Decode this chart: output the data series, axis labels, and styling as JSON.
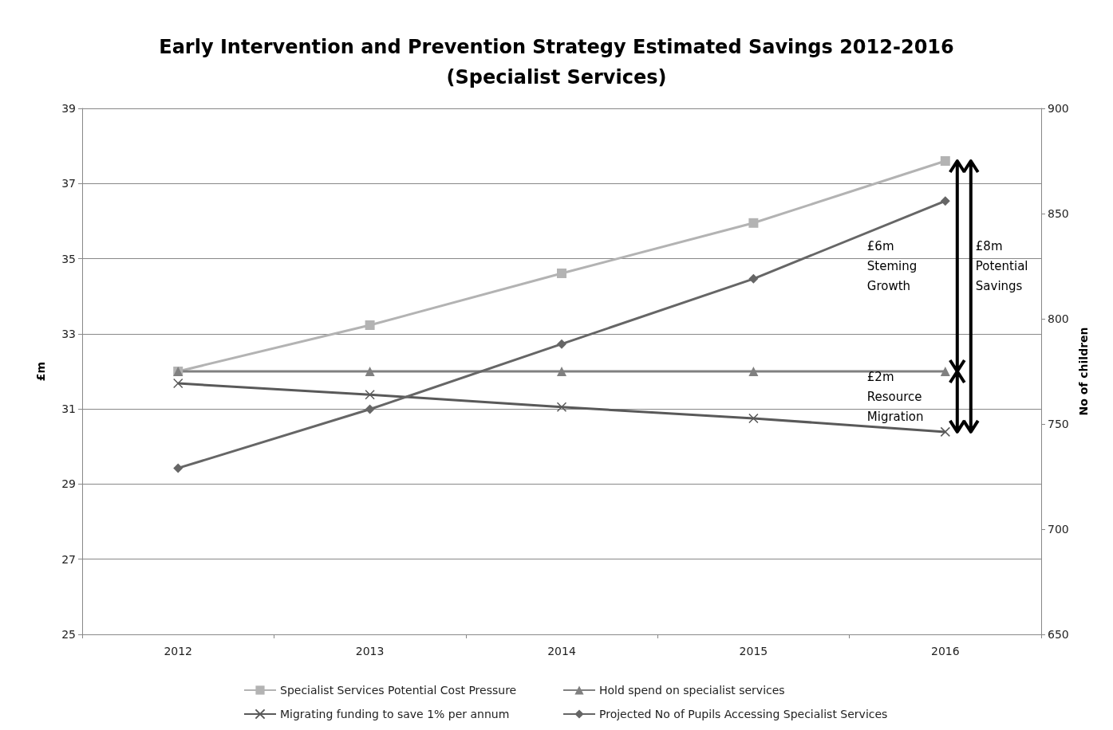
{
  "chart_data": {
    "type": "line",
    "title": "Early Intervention and Prevention Strategy Estimated Savings 2012-2016\n(Specialist Services)",
    "categories": [
      "2012",
      "2013",
      "2014",
      "2015",
      "2016"
    ],
    "ylabel": "£m",
    "y2label": "No of children",
    "ylim": [
      25,
      39
    ],
    "yticks": [
      25,
      27,
      29,
      31,
      33,
      35,
      37,
      39
    ],
    "y2lim": [
      650,
      900
    ],
    "y2ticks": [
      650,
      700,
      750,
      800,
      850,
      900
    ],
    "grid": "y",
    "legend": "bottom",
    "series": [
      {
        "name": "Specialist Services Potential Cost Pressure",
        "color": "#b3b3b3",
        "marker": "square",
        "values": [
          32.0,
          33.23,
          34.61,
          35.95,
          37.6
        ]
      },
      {
        "name": "Hold spend on specialist services",
        "color": "#808080",
        "marker": "triangle",
        "values": [
          32.0,
          32.0,
          32.0,
          32.0,
          32.0
        ]
      },
      {
        "name": "Migrating funding to save 1% per annum",
        "color": "#595959",
        "marker": "cross",
        "values": [
          31.68,
          31.38,
          31.05,
          30.75,
          30.39
        ]
      },
      {
        "name": "Projected No of Pupils Accessing Specialist Services",
        "color": "#666666",
        "marker": "diamond",
        "axis": "y2",
        "values": [
          729,
          757,
          788,
          819,
          856
        ]
      }
    ],
    "annotations": [
      "£6m\nSteming\nGrowth",
      "£8m\nPotential\nSavings",
      "£2m\nResource\nMigration"
    ]
  }
}
